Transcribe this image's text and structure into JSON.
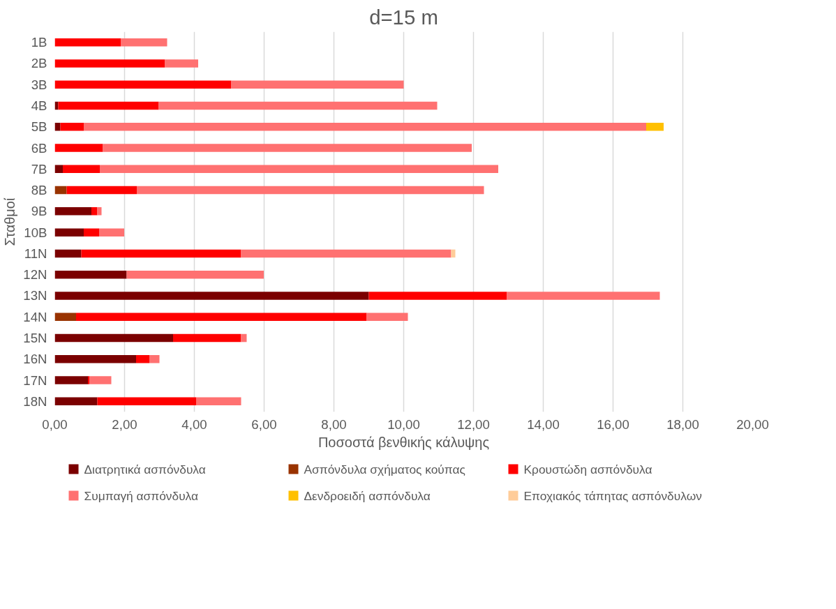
{
  "chart_data": {
    "type": "bar",
    "orientation": "horizontal",
    "stacked": true,
    "title": "d=15 m",
    "xlabel": "Ποσοστά βενθικής κάλυψης",
    "ylabel": "Σταθμοί",
    "categories": [
      "1B",
      "2B",
      "3B",
      "4B",
      "5B",
      "6B",
      "7B",
      "8B",
      "9B",
      "10B",
      "11N",
      "12N",
      "13N",
      "14N",
      "15N",
      "16N",
      "17N",
      "18N"
    ],
    "series": [
      {
        "name": "Διατρητικά ασπόνδυλα",
        "color": "#7b0000",
        "values": [
          0,
          0,
          0,
          0.1,
          0.16,
          0,
          0.23,
          0,
          1.05,
          0.83,
          0.76,
          2.06,
          9.0,
          0,
          3.39,
          2.33,
          0.95,
          1.22
        ]
      },
      {
        "name": "Ασπόνδυλα σχήματος κούπας",
        "color": "#993300",
        "values": [
          0,
          0,
          0,
          0,
          0,
          0,
          0,
          0.34,
          0,
          0,
          0,
          0,
          0,
          0.61,
          0,
          0,
          0,
          0
        ]
      },
      {
        "name": "Κρουστώδη ασπόνδυλα",
        "color": "#ff0000",
        "values": [
          1.89,
          3.16,
          5.06,
          2.88,
          0.67,
          1.38,
          1.06,
          2.01,
          0.17,
          0.44,
          4.58,
          0,
          3.96,
          8.33,
          1.95,
          0.38,
          0.04,
          2.83
        ]
      },
      {
        "name": "Συμπαγή ασπόνδυλα",
        "color": "#ff7171",
        "values": [
          1.33,
          0.95,
          4.94,
          7.98,
          16.12,
          10.57,
          11.42,
          9.95,
          0.12,
          0.72,
          6.02,
          3.93,
          4.38,
          1.18,
          0.16,
          0.29,
          0.63,
          1.29
        ]
      },
      {
        "name": "Δενδροειδή ασπόνδυλα",
        "color": "#ffc000",
        "values": [
          0,
          0,
          0,
          0,
          0.5,
          0,
          0,
          0,
          0,
          0,
          0,
          0,
          0,
          0,
          0,
          0,
          0,
          0
        ]
      },
      {
        "name": "Εποχιακός τάπητας ασπόνδυλων",
        "color": "#ffcc99",
        "values": [
          0,
          0,
          0,
          0,
          0,
          0,
          0,
          0,
          0,
          0,
          0.12,
          0,
          0,
          0,
          0,
          0,
          0,
          0
        ]
      }
    ],
    "xlim": [
      0,
      20
    ],
    "xticks": [
      {
        "value": 0,
        "label": "0,00"
      },
      {
        "value": 2,
        "label": "2,00"
      },
      {
        "value": 4,
        "label": "4,00"
      },
      {
        "value": 6,
        "label": "6,00"
      },
      {
        "value": 8,
        "label": "8,00"
      },
      {
        "value": 10,
        "label": "10,00"
      },
      {
        "value": 12,
        "label": "12,00"
      },
      {
        "value": 14,
        "label": "14,00"
      },
      {
        "value": 16,
        "label": "16,00"
      },
      {
        "value": 18,
        "label": "18,00"
      },
      {
        "value": 20,
        "label": "20,00"
      }
    ],
    "grid": "x",
    "legend": "bottom"
  }
}
